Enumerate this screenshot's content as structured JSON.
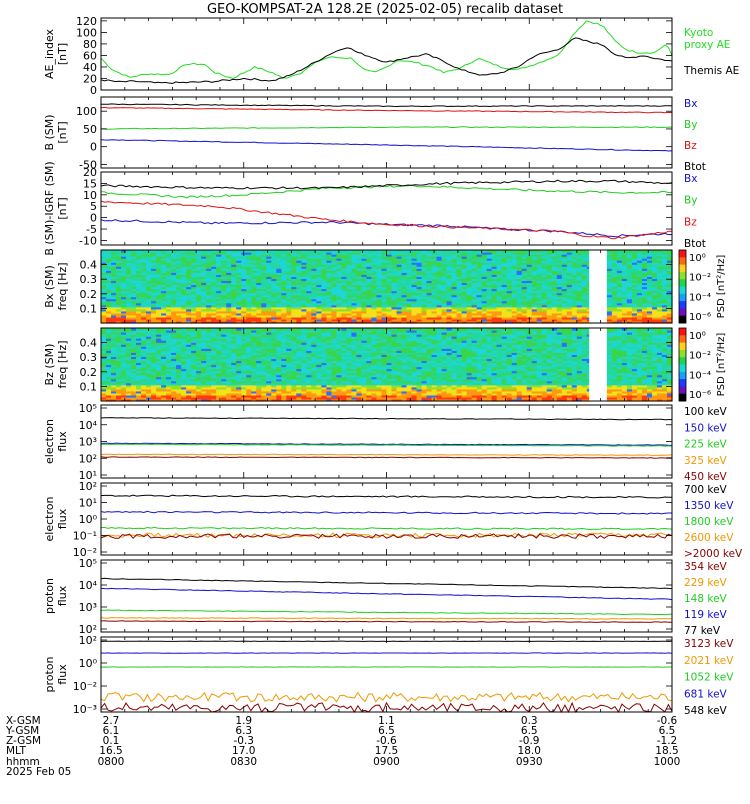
{
  "title": "GEO-KOMPSAT-2A 128.2E (2025-02-05) recalib dataset",
  "chart_data": [
    {
      "type": "line",
      "panel": "ae",
      "ylabel": "AE_index [nT]",
      "yticks": [
        "0",
        "20",
        "40",
        "60",
        "80",
        "100",
        "120"
      ],
      "ylim": [
        0,
        125
      ],
      "series": [
        {
          "name": "Kyoto proxy AE",
          "color": "#22dd22",
          "x": [
            0,
            2,
            5,
            8,
            12,
            15,
            18,
            20,
            23,
            27,
            30,
            32,
            35,
            38,
            40,
            44,
            46,
            48,
            50,
            52,
            55,
            58,
            60,
            63,
            66,
            70,
            73,
            76,
            80,
            83,
            85,
            87,
            88,
            90,
            92,
            94,
            97,
            99,
            100
          ],
          "values": [
            55,
            35,
            22,
            28,
            27,
            45,
            45,
            30,
            20,
            40,
            30,
            20,
            30,
            50,
            57,
            55,
            35,
            30,
            40,
            52,
            48,
            40,
            30,
            38,
            55,
            40,
            35,
            45,
            60,
            100,
            120,
            115,
            110,
            85,
            70,
            65,
            65,
            80,
            60
          ]
        },
        {
          "name": "Themis AE",
          "color": "#000000",
          "x": [
            0,
            3,
            6,
            10,
            15,
            20,
            25,
            30,
            33,
            36,
            40,
            43,
            45,
            48,
            50,
            53,
            57,
            60,
            63,
            67,
            70,
            73,
            76,
            80,
            83,
            85,
            88,
            90,
            92,
            95,
            97,
            100
          ],
          "values": [
            18,
            14,
            15,
            12,
            13,
            15,
            20,
            16,
            25,
            40,
            62,
            75,
            65,
            55,
            48,
            55,
            62,
            50,
            35,
            25,
            30,
            40,
            60,
            70,
            90,
            85,
            78,
            62,
            55,
            60,
            55,
            50
          ]
        }
      ],
      "xlim": [
        0,
        100
      ]
    },
    {
      "type": "line",
      "panel": "b_sm",
      "ylabel": "B (SM) [nT]",
      "yticks": [
        "-50",
        "0",
        "50",
        "100"
      ],
      "ylim": [
        -60,
        140
      ],
      "series": [
        {
          "name": "Bx",
          "color": "#1111cc",
          "x": [
            0,
            50,
            100
          ],
          "values": [
            20,
            5,
            -12
          ]
        },
        {
          "name": "By",
          "color": "#22cc22",
          "x": [
            0,
            50,
            100
          ],
          "values": [
            50,
            55,
            55
          ]
        },
        {
          "name": "Bz",
          "color": "#dd1111",
          "x": [
            0,
            50,
            100
          ],
          "values": [
            110,
            102,
            96
          ]
        },
        {
          "name": "Btot",
          "color": "#000000",
          "x": [
            0,
            50,
            100
          ],
          "values": [
            120,
            114,
            115
          ]
        }
      ],
      "xlim": [
        0,
        100
      ]
    },
    {
      "type": "line",
      "panel": "b_igrf",
      "ylabel": "B (SM)-IGRF (SM) [nT]",
      "yticks": [
        "-10",
        "-5",
        "0",
        "5",
        "10",
        "15",
        "20"
      ],
      "ylim": [
        -12,
        20
      ],
      "series": [
        {
          "name": "Bx",
          "color": "#1111cc",
          "x": [
            0,
            20,
            40,
            50,
            60,
            70,
            80,
            90,
            100
          ],
          "values": [
            -1,
            -2.5,
            -2,
            -3,
            -3.5,
            -5,
            -6,
            -8,
            -7
          ]
        },
        {
          "name": "By",
          "color": "#22cc22",
          "x": [
            0,
            15,
            25,
            40,
            55,
            75,
            90,
            100
          ],
          "values": [
            11,
            9,
            10,
            13,
            14,
            12,
            11,
            11
          ]
        },
        {
          "name": "Bz",
          "color": "#dd1111",
          "x": [
            0,
            10,
            20,
            30,
            40,
            50,
            60,
            70,
            80,
            85,
            90,
            100
          ],
          "values": [
            7,
            6,
            5,
            2,
            -1,
            -3,
            -4,
            -5,
            -6,
            -8,
            -9,
            -6
          ]
        },
        {
          "name": "Btot",
          "color": "#000000",
          "x": [
            0,
            20,
            40,
            60,
            80,
            90,
            100
          ],
          "values": [
            14,
            13,
            13,
            15,
            16,
            16,
            15
          ]
        }
      ],
      "xlim": [
        0,
        100
      ]
    },
    {
      "type": "heatmap",
      "panel": "bx_spec",
      "ylabel": "Bx (SM) freq [Hz]",
      "yticks": [
        "0.1",
        "0.2",
        "0.3",
        "0.4"
      ],
      "ylim": [
        0,
        0.5
      ],
      "gap": [
        85.5,
        88.5
      ],
      "colorbar_label": "PSD [nT²/Hz]",
      "colorbar_ticks": [
        "10⁰",
        "10⁻²",
        "10⁻⁴",
        "10⁻⁶"
      ]
    },
    {
      "type": "heatmap",
      "panel": "bz_spec",
      "ylabel": "Bz (SM) freq [Hz]",
      "yticks": [
        "0.1",
        "0.2",
        "0.3",
        "0.4"
      ],
      "ylim": [
        0,
        0.5
      ],
      "gap": [
        85.5,
        88.5
      ],
      "colorbar_label": "PSD [nT²/Hz]",
      "colorbar_ticks": [
        "10⁰",
        "10⁻²",
        "10⁻⁴",
        "10⁻⁶"
      ]
    },
    {
      "type": "line",
      "panel": "electron1",
      "ylabel": "electron flux",
      "log": true,
      "yticks": [
        "10¹",
        "10²",
        "10³",
        "10⁴",
        "10⁵"
      ],
      "ylim": [
        1,
        5
      ],
      "series": [
        {
          "name": "100 keV",
          "color": "#000000",
          "x": [
            0,
            100
          ],
          "values": [
            4.3,
            4.2
          ]
        },
        {
          "name": "150 keV",
          "color": "#1111cc",
          "x": [
            0,
            100
          ],
          "values": [
            2.9,
            2.8
          ]
        },
        {
          "name": "225 keV",
          "color": "#22cc22",
          "x": [
            0,
            100
          ],
          "values": [
            2.85,
            2.75
          ]
        },
        {
          "name": "325 keV",
          "color": "#ee9900",
          "x": [
            0,
            100
          ],
          "values": [
            2.3,
            2.25
          ]
        },
        {
          "name": "450 keV",
          "color": "#880000",
          "x": [
            0,
            100
          ],
          "values": [
            2.15,
            2.1
          ]
        }
      ],
      "xlim": [
        0,
        100
      ]
    },
    {
      "type": "line",
      "panel": "electron2",
      "ylabel": "electron flux",
      "log": true,
      "yticks": [
        "10⁻²",
        "10⁻¹",
        "10⁰",
        "10¹",
        "10²"
      ],
      "ylim": [
        -2,
        2
      ],
      "series": [
        {
          "name": "700 keV",
          "color": "#000000",
          "x": [
            0,
            100
          ],
          "values": [
            1.3,
            1.2
          ]
        },
        {
          "name": "1350 keV",
          "color": "#1111cc",
          "x": [
            0,
            100
          ],
          "values": [
            0.4,
            0.3
          ]
        },
        {
          "name": "1800 keV",
          "color": "#22cc22",
          "x": [
            0,
            100
          ],
          "values": [
            -0.5,
            -0.55
          ]
        },
        {
          "name": "2600 keV",
          "color": "#ee9900",
          "x": [
            0,
            100
          ],
          "values": [
            -0.9,
            -0.9
          ]
        },
        {
          "name": ">2000 keV",
          "color": "#880000",
          "x": [
            0,
            100
          ],
          "values": [
            -0.95,
            -0.95
          ]
        }
      ],
      "xlim": [
        0,
        100
      ]
    },
    {
      "type": "line",
      "panel": "proton1",
      "ylabel": "proton flux",
      "log": true,
      "yticks": [
        "10²",
        "10³",
        "10⁴",
        "10⁵"
      ],
      "ylim": [
        1.8,
        5.1
      ],
      "series": [
        {
          "name": "354 keV",
          "color": "#880000",
          "x": [
            0,
            100
          ],
          "values": [
            2.3,
            2.25
          ]
        },
        {
          "name": "229 keV",
          "color": "#ee9900",
          "x": [
            0,
            100
          ],
          "values": [
            2.45,
            2.4
          ]
        },
        {
          "name": "148 keV",
          "color": "#22cc22",
          "x": [
            0,
            100
          ],
          "values": [
            2.8,
            2.6
          ]
        },
        {
          "name": "119 keV",
          "color": "#1111cc",
          "x": [
            0,
            100
          ],
          "values": [
            3.8,
            3.3
          ]
        },
        {
          "name": "77 keV",
          "color": "#000000",
          "x": [
            0,
            100
          ],
          "values": [
            4.25,
            3.8
          ]
        }
      ],
      "xlim": [
        0,
        100
      ]
    },
    {
      "type": "line",
      "panel": "proton2",
      "ylabel": "proton flux",
      "log": true,
      "yticks": [
        "10⁻³",
        "10⁻²",
        "10⁰",
        "10²"
      ],
      "ylim": [
        -4,
        3
      ],
      "series": [
        {
          "name": "3123 keV",
          "color": "#880000",
          "x": [
            0,
            100
          ],
          "values": [
            -3.6,
            -3.6
          ]
        },
        {
          "name": "2021 keV",
          "color": "#ee9900",
          "x": [
            0,
            100
          ],
          "values": [
            -2.6,
            -2.6
          ]
        },
        {
          "name": "1052 keV",
          "color": "#22cc22",
          "x": [
            0,
            100
          ],
          "values": [
            0.2,
            0.2
          ]
        },
        {
          "name": "681 keV",
          "color": "#1111cc",
          "x": [
            0,
            100
          ],
          "values": [
            1.5,
            1.5
          ]
        },
        {
          "name": "548 keV",
          "color": "#000000",
          "x": [
            0,
            100
          ],
          "values": [
            2.6,
            2.6
          ]
        }
      ],
      "xlim": [
        0,
        100
      ]
    }
  ],
  "ephemeris": {
    "row_labels": [
      "X-GSM",
      "Y-GSM",
      "Z-GSM",
      "MLT",
      "hhmm",
      "2025 Feb 05"
    ],
    "columns": [
      [
        "2.7",
        "6.1",
        "0.1",
        "16.5",
        "0800"
      ],
      [
        "1.9",
        "6.3",
        "-0.3",
        "17.0",
        "0830"
      ],
      [
        "1.1",
        "6.5",
        "-0.6",
        "17.5",
        "0900"
      ],
      [
        "0.3",
        "6.5",
        "-0.9",
        "18.0",
        "0930"
      ],
      [
        "-0.6",
        "6.5",
        "-1.2",
        "18.5",
        "1000"
      ]
    ]
  }
}
